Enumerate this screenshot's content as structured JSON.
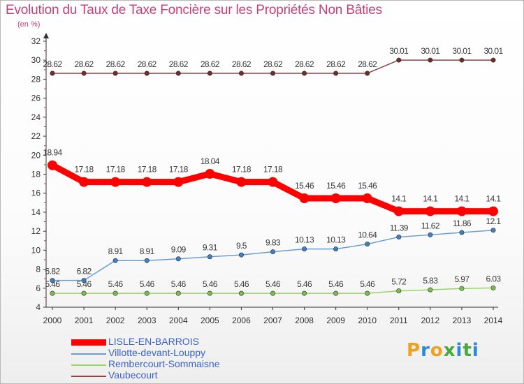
{
  "title": "Evolution du Taux de Taxe Foncière sur les Propriétés Non Bâties",
  "unit_label": "(en %)",
  "brand": {
    "letters": [
      "P",
      "r",
      "o",
      "x",
      "i",
      "t",
      "i"
    ],
    "colors": [
      "#f0a020",
      "#2f87d8",
      "#f0a020",
      "#49a83c",
      "#2f87d8",
      "#49a83c",
      "#2f87d8"
    ]
  },
  "chart_data": {
    "type": "line",
    "title": "Evolution du Taux de Taxe Foncière sur les Propriétés Non Bâties",
    "ylabel": "(en %)",
    "xlabel": "",
    "x": [
      "2000",
      "2001",
      "2002",
      "2003",
      "2004",
      "2005",
      "2006",
      "2007",
      "2008",
      "2009",
      "2010",
      "2011",
      "2012",
      "2013",
      "2014"
    ],
    "ylim": [
      4,
      32
    ],
    "yticks": [
      "4",
      "6",
      "8",
      "10",
      "12",
      "14",
      "16",
      "18",
      "20",
      "22",
      "24",
      "26",
      "28",
      "30",
      "32"
    ],
    "grid": false,
    "legend_position": "bottom-left",
    "series": [
      {
        "name": "LISLE-EN-BARROIS",
        "color": "#ff0000",
        "emphasis": true,
        "values": [
          18.94,
          17.18,
          17.18,
          17.18,
          17.18,
          18.04,
          17.18,
          17.18,
          15.46,
          15.46,
          15.46,
          14.1,
          14.1,
          14.1,
          14.1
        ],
        "labels": [
          "18.94",
          "17.18",
          "17.18",
          "17.18",
          "17.18",
          "18.04",
          "17.18",
          "17.18",
          "15.46",
          "15.46",
          "15.46",
          "14.1",
          "14.1",
          "14.1",
          "14.1"
        ]
      },
      {
        "name": "Villotte-devant-Louppy",
        "color": "#6a9ed3",
        "marker": "#3f7fc6",
        "values": [
          6.82,
          6.82,
          8.91,
          8.91,
          9.09,
          9.31,
          9.5,
          9.83,
          10.13,
          10.13,
          10.64,
          11.39,
          11.62,
          11.86,
          12.1
        ],
        "labels": [
          "6.82",
          "6.82",
          "8.91",
          "8.91",
          "9.09",
          "9.31",
          "9.5",
          "9.83",
          "10.13",
          "10.13",
          "10.64",
          "11.39",
          "11.62",
          "11.86",
          "12.1"
        ]
      },
      {
        "name": "Rembercourt-Sommaisne",
        "color": "#99d468",
        "marker": "#7cc04a",
        "values": [
          5.46,
          5.46,
          5.46,
          5.46,
          5.46,
          5.46,
          5.46,
          5.46,
          5.46,
          5.46,
          5.46,
          5.72,
          5.83,
          5.97,
          6.03
        ],
        "labels": [
          "5.46",
          "5.46",
          "5.46",
          "5.46",
          "5.46",
          "5.46",
          "5.46",
          "5.46",
          "5.46",
          "5.46",
          "5.46",
          "5.72",
          "5.83",
          "5.97",
          "6.03"
        ]
      },
      {
        "name": "Vaubecourt",
        "color": "#8c4545",
        "marker": "#6e2c2c",
        "values": [
          28.62,
          28.62,
          28.62,
          28.62,
          28.62,
          28.62,
          28.62,
          28.62,
          28.62,
          28.62,
          28.62,
          30.01,
          30.01,
          30.01,
          30.01
        ],
        "labels": [
          "28.62",
          "28.62",
          "28.62",
          "28.62",
          "28.62",
          "28.62",
          "28.62",
          "28.62",
          "28.62",
          "28.62",
          "28.62",
          "30.01",
          "30.01",
          "30.01",
          "30.01"
        ]
      }
    ]
  }
}
